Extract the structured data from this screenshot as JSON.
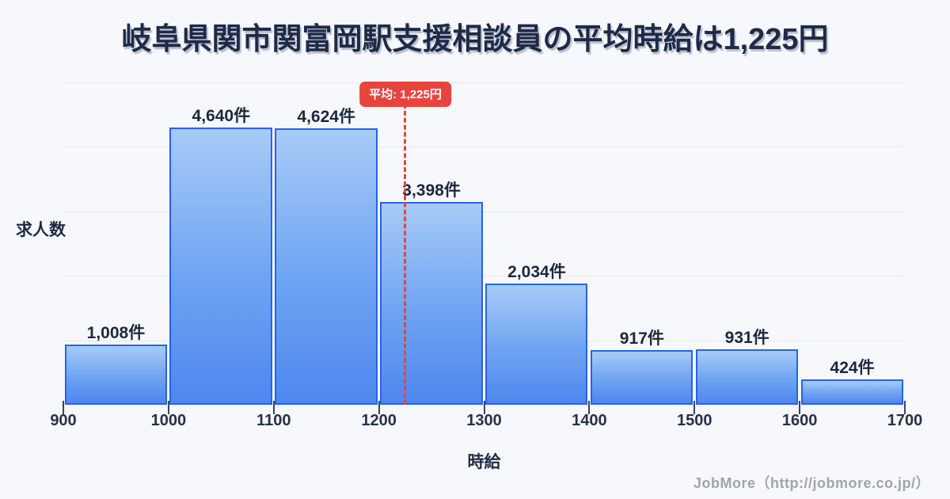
{
  "title": "岐阜県関市関富岡駅支援相談員の平均時給は1,225円",
  "chart_data": {
    "type": "bar",
    "subtype": "histogram",
    "title": "岐阜県関市関富岡駅支援相談員の平均時給は1,225円",
    "xlabel": "時給",
    "ylabel": "求人数",
    "bin_edges": [
      900,
      1000,
      1100,
      1200,
      1300,
      1400,
      1500,
      1600,
      1700
    ],
    "x_tick_labels": [
      "900",
      "1000",
      "1100",
      "1200",
      "1300",
      "1400",
      "1500",
      "1600",
      "1700"
    ],
    "values": [
      1008,
      4640,
      4624,
      3398,
      2034,
      917,
      931,
      424
    ],
    "bar_labels": [
      "1,008件",
      "4,640件",
      "4,624件",
      "3,398件",
      "2,034件",
      "917件",
      "931件",
      "424件"
    ],
    "average_value": 1225,
    "average_label": "平均: 1,225円",
    "ylim": [
      0,
      5000
    ],
    "grid": "horizontal",
    "gridline_count": 5,
    "legend_position": "none",
    "colors": {
      "background": "#f7f8fb",
      "bar_fill_top": "#a7cbf7",
      "bar_fill_bottom": "#4e87ef",
      "bar_border": "#2563eb",
      "average_accent": "#e8443e",
      "title_text": "#1e2a47",
      "gridline": "#e5e9f0"
    }
  },
  "footer": {
    "credit": "JobMore（http://jobmore.co.jp/）"
  }
}
